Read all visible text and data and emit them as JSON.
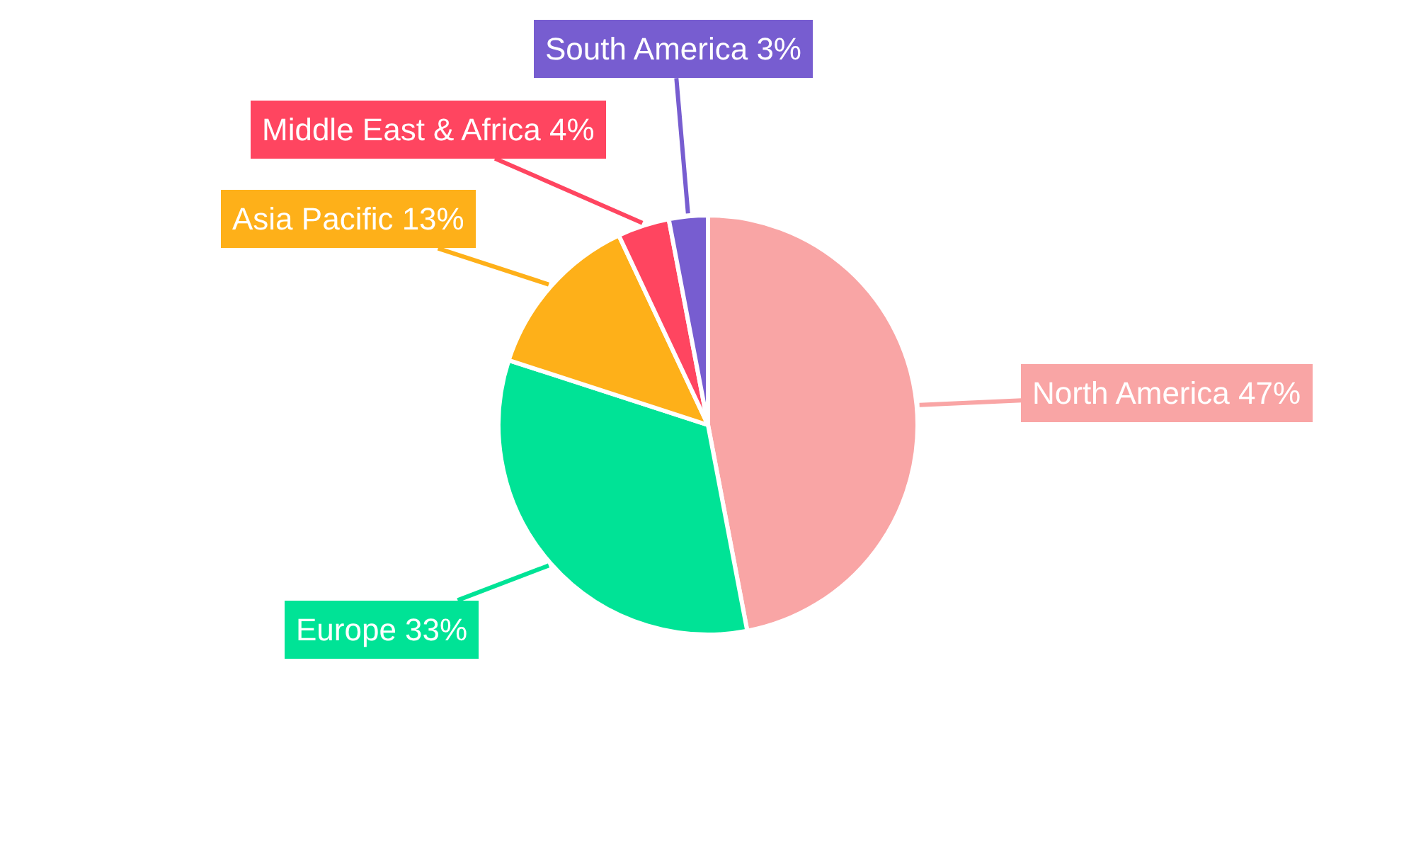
{
  "chart_data": {
    "type": "pie",
    "categories": [
      "North America",
      "Europe",
      "Asia Pacific",
      "Middle East & Africa",
      "South America"
    ],
    "values": [
      47,
      33,
      13,
      4,
      3
    ],
    "value_labels": [
      "47%",
      "33%",
      "13%",
      "4%",
      "3%"
    ],
    "colors": [
      "#f9a5a5",
      "#00e396",
      "#feb019",
      "#ff4560",
      "#775dd0"
    ],
    "legend": false
  }
}
